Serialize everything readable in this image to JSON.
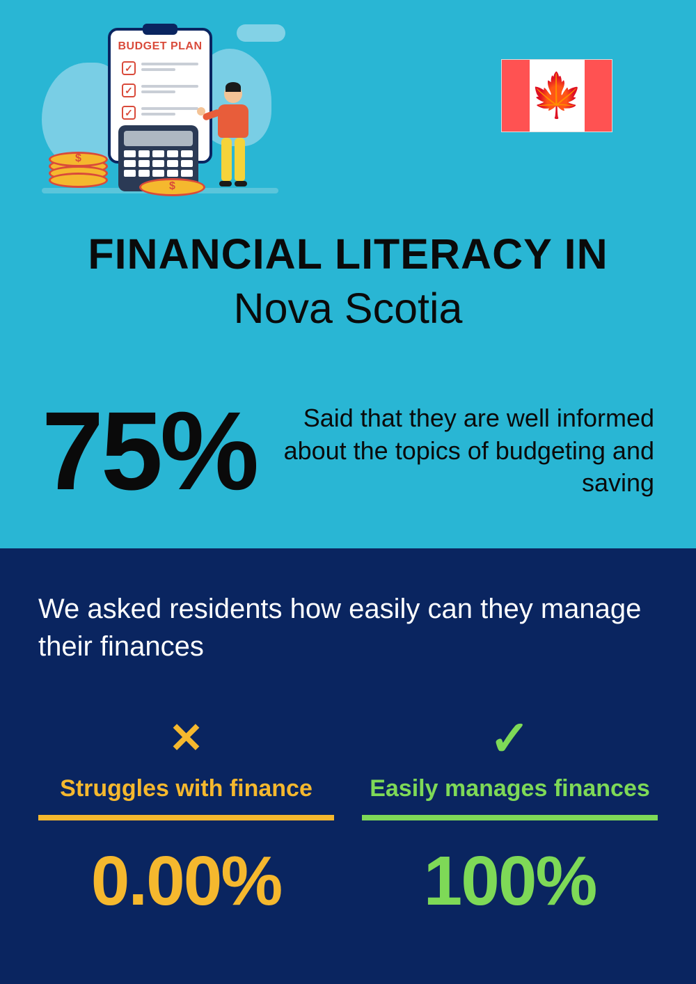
{
  "colors": {
    "top_bg": "#29b6d4",
    "bottom_bg": "#0a2560",
    "text_dark": "#0a0a0a",
    "text_light": "#ffffff",
    "accent_yellow": "#f5b82e",
    "accent_green": "#7ed957",
    "flag_red": "#ff5252"
  },
  "illustration": {
    "clipboard_title": "BUDGET PLAN"
  },
  "title": {
    "line1": "FINANCIAL LITERACY IN",
    "line2": "Nova Scotia"
  },
  "headline_stat": {
    "value": "75%",
    "description": "Said that they are well informed about the topics of budgeting and saving"
  },
  "question": "We asked residents how easily can they manage their finances",
  "results": {
    "struggles": {
      "label": "Struggles with finance",
      "value": "0.00%",
      "icon": "x",
      "color": "#f5b82e"
    },
    "manages": {
      "label": "Easily manages finances",
      "value": "100%",
      "icon": "check",
      "color": "#7ed957"
    }
  }
}
